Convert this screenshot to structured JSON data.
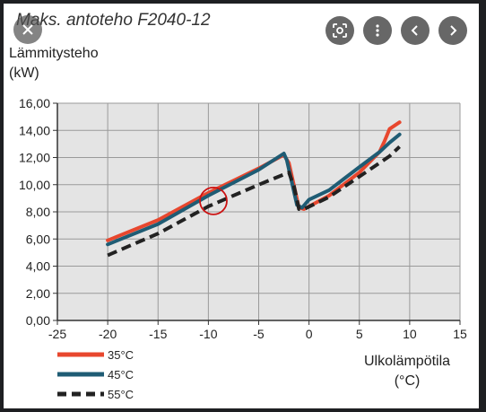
{
  "chart_data": {
    "type": "line",
    "title": "Maks. antoteho F2040-12",
    "ylabel_line1": "Lämmitysteho",
    "ylabel_line2": "(kW)",
    "xlabel_line1": "Ulkolämpötila",
    "xlabel_line2": "(°C)",
    "xlim": [
      -25,
      15
    ],
    "ylim": [
      0,
      16
    ],
    "xticks": [
      -25,
      -20,
      -15,
      -10,
      -5,
      0,
      5,
      10,
      15
    ],
    "xtick_labels": [
      "-25",
      "-20",
      "-15",
      "-10",
      "-5",
      "0",
      "5",
      "10",
      "15"
    ],
    "yticks": [
      0,
      2,
      4,
      6,
      8,
      10,
      12,
      14,
      16
    ],
    "ytick_labels": [
      "0,00",
      "2,00",
      "4,00",
      "6,00",
      "8,00",
      "10,00",
      "12,00",
      "14,00",
      "16,00"
    ],
    "grid": true,
    "legend_position": "bottom-left",
    "series": [
      {
        "name": "35°C",
        "color": "#e8472e",
        "style": "solid",
        "x": [
          -20,
          -15,
          -10,
          -5,
          -2.5,
          -2,
          -1,
          -0.5,
          2,
          5,
          7,
          7.5,
          8,
          9
        ],
        "y": [
          5.9,
          7.4,
          9.4,
          11.2,
          12.2,
          11.6,
          8.3,
          8.2,
          9.2,
          10.9,
          12.4,
          13.2,
          14.1,
          14.6
        ]
      },
      {
        "name": "45°C",
        "color": "#1f5c74",
        "style": "solid",
        "x": [
          -20,
          -15,
          -10,
          -5,
          -2.5,
          -2.2,
          -1.2,
          -0.7,
          0,
          2,
          5,
          7,
          8,
          9
        ],
        "y": [
          5.6,
          7.1,
          9.2,
          11.1,
          12.3,
          11.8,
          8.5,
          8.3,
          8.9,
          9.6,
          11.3,
          12.4,
          13.1,
          13.7
        ]
      },
      {
        "name": "55°C",
        "color": "#222222",
        "style": "dashed",
        "x": [
          -20,
          -15,
          -10,
          -5,
          -2,
          -1.5,
          -1,
          -0.5,
          2,
          5,
          7,
          8,
          9
        ],
        "y": [
          4.8,
          6.4,
          8.4,
          10.0,
          10.9,
          9.9,
          8.2,
          8.2,
          9.1,
          10.6,
          11.6,
          12.1,
          12.8
        ]
      }
    ],
    "annotation": {
      "type": "circle",
      "x": -9.5,
      "y": 8.8,
      "color": "#cc1111"
    }
  },
  "controls": {
    "close_icon": "close-icon",
    "lens_icon": "lens-icon",
    "more_icon": "more-vert-icon",
    "prev_icon": "chevron-left-icon",
    "next_icon": "chevron-right-icon"
  }
}
